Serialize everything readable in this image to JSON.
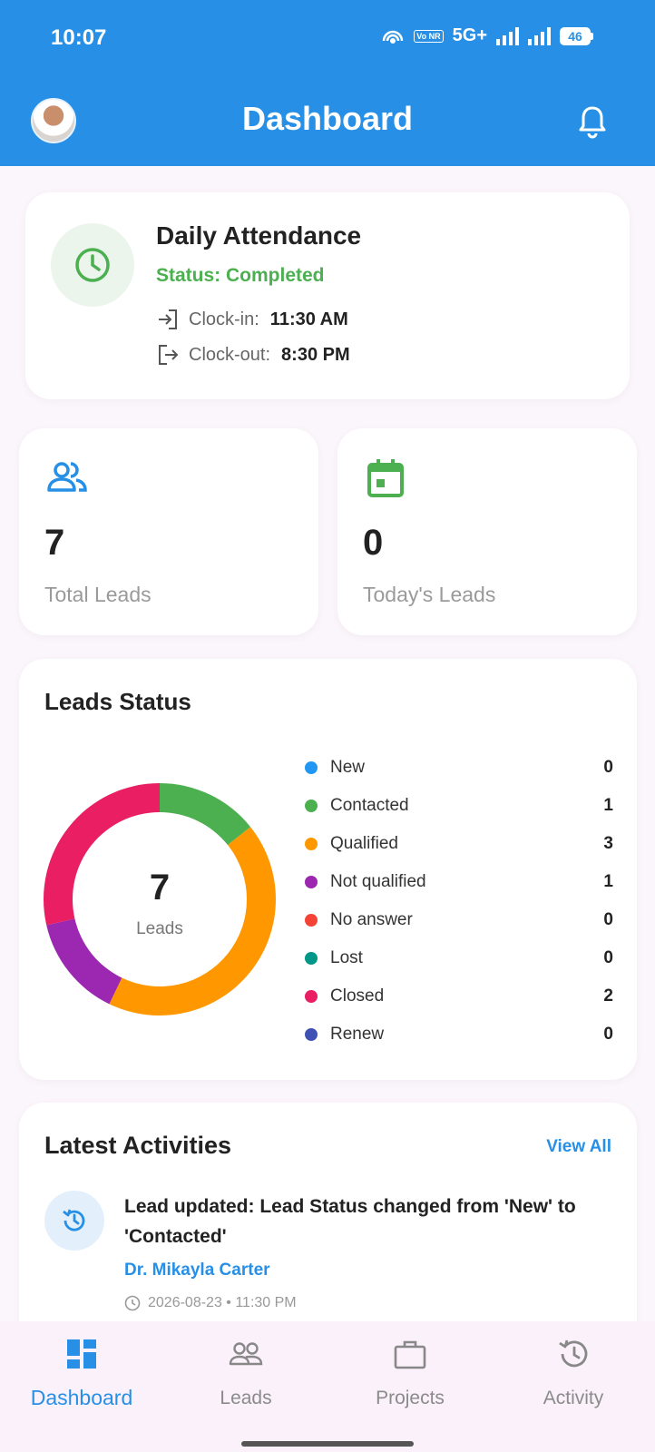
{
  "status_bar": {
    "time": "10:07",
    "network": "5G+",
    "volte": "Vo NR",
    "battery": "46"
  },
  "header": {
    "title": "Dashboard",
    "avatar_icon": "user-avatar",
    "bell_icon": "bell-icon"
  },
  "attendance": {
    "title": "Daily Attendance",
    "status": "Status: Completed",
    "clock_in_label": "Clock-in:",
    "clock_in_value": "11:30 AM",
    "clock_out_label": "Clock-out:",
    "clock_out_value": "8:30 PM"
  },
  "stats": {
    "total": {
      "value": "7",
      "label": "Total Leads"
    },
    "today": {
      "value": "0",
      "label": "Today's Leads"
    }
  },
  "leads_status": {
    "title": "Leads Status",
    "center_value": "7",
    "center_label": "Leads",
    "items": [
      {
        "name": "New",
        "count": "0",
        "color": "#2196f3"
      },
      {
        "name": "Contacted",
        "count": "1",
        "color": "#4caf50"
      },
      {
        "name": "Qualified",
        "count": "3",
        "color": "#ff9800"
      },
      {
        "name": "Not qualified",
        "count": "1",
        "color": "#9c27b0"
      },
      {
        "name": "No answer",
        "count": "0",
        "color": "#f44336"
      },
      {
        "name": "Lost",
        "count": "0",
        "color": "#009688"
      },
      {
        "name": "Closed",
        "count": "2",
        "color": "#e91e63"
      },
      {
        "name": "Renew",
        "count": "0",
        "color": "#3f51b5"
      }
    ]
  },
  "activities": {
    "title": "Latest Activities",
    "view_all": "View All",
    "items": [
      {
        "text": "Lead updated: Lead Status changed from 'New' to 'Contacted'",
        "user": "Dr. Mikayla Carter",
        "time": "2026-08-23 • 11:30 PM"
      }
    ]
  },
  "nav": {
    "items": [
      {
        "label": "Dashboard",
        "icon": "dashboard-icon"
      },
      {
        "label": "Leads",
        "icon": "people-icon"
      },
      {
        "label": "Projects",
        "icon": "briefcase-icon"
      },
      {
        "label": "Activity",
        "icon": "history-icon"
      }
    ]
  },
  "colors": {
    "primary": "#2790e6",
    "success": "#4caf50"
  }
}
